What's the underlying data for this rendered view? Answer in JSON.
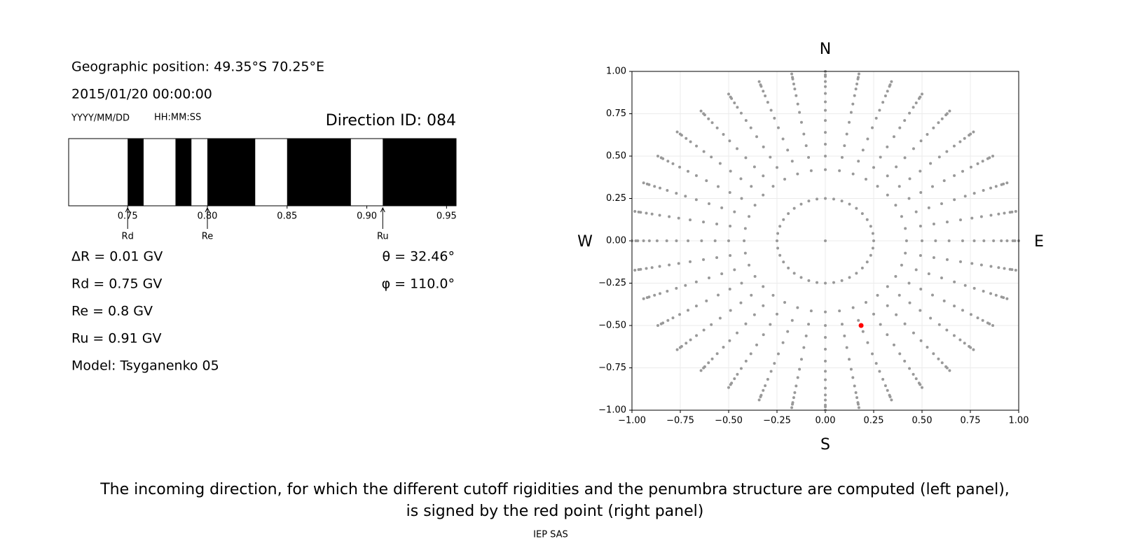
{
  "texts": {
    "geo": "Geographic position: 49.35°S 70.25°E",
    "datetime": "2015/01/20 00:00:00",
    "date_format": "YYYY/MM/DD",
    "time_format": "HH:MM:SS",
    "direction": "Direction ID: 084",
    "delta_r": "ΔR = 0.01 GV",
    "rd": "Rd = 0.75 GV",
    "re": "Re = 0.8 GV",
    "ru": "Ru = 0.91 GV",
    "model": "Model: Tsyganenko 05",
    "theta": "θ = 32.46°",
    "phi": "φ = 110.0°",
    "caption": [
      "The incoming direction, for which the different cutoff rigidities and the penumbra structure are computed (left panel),",
      "is signed by the red point (right panel)"
    ],
    "credit": "IEP SAS"
  },
  "chart_data": [
    {
      "type": "penumbra",
      "color": "#000000",
      "xlim": [
        0.713,
        0.956
      ],
      "xticks": [
        0.75,
        {
          "value": 0.8,
          "label": "0.80"
        },
        0.85,
        {
          "value": 0.9,
          "label": "0.90"
        },
        0.95
      ],
      "forbidden": [
        [
          0.75,
          0.76
        ],
        [
          0.78,
          0.79
        ],
        [
          0.8,
          0.83
        ],
        [
          0.85,
          0.89
        ],
        [
          0.91,
          0.956
        ]
      ],
      "markers": [
        {
          "name": "Rd",
          "value": 0.75
        },
        {
          "name": "Re",
          "value": 0.8
        },
        {
          "name": "Ru",
          "value": 0.91
        }
      ]
    },
    {
      "type": "scatter",
      "grid": true,
      "xlim": [
        -1,
        1
      ],
      "ylim": [
        -1,
        1
      ],
      "xticks": [
        {
          "value": -1,
          "label": "−1.00"
        },
        {
          "value": -0.75,
          "label": "−0.75"
        },
        {
          "value": -0.5,
          "label": "−0.50"
        },
        {
          "value": -0.25,
          "label": "−0.25"
        },
        {
          "value": 0,
          "label": "0.00"
        },
        0.25,
        {
          "value": 0.5,
          "label": "0.50"
        },
        0.75,
        {
          "value": 1,
          "label": "1.00"
        }
      ],
      "yticks": [
        {
          "value": -1,
          "label": "−1.00"
        },
        {
          "value": -0.75,
          "label": "−0.75"
        },
        {
          "value": -0.5,
          "label": "−0.50"
        },
        {
          "value": -0.25,
          "label": "−0.25"
        },
        {
          "value": 0,
          "label": "0.00"
        },
        0.25,
        {
          "value": 0.5,
          "label": "0.50"
        },
        0.75,
        {
          "value": 1,
          "label": "1.00"
        }
      ],
      "compass": {
        "north": "N",
        "east": "E",
        "south": "S",
        "west": "W"
      },
      "directions": {
        "color": "#999999",
        "center": [
          0,
          0
        ],
        "azimuths": [
          0,
          10,
          20,
          30,
          40,
          50,
          60,
          70,
          80,
          90,
          100,
          110,
          120,
          130,
          140,
          150,
          160,
          170,
          180,
          190,
          200,
          210,
          220,
          230,
          240,
          250,
          260,
          270,
          280,
          290,
          300,
          310,
          320,
          330,
          340,
          350
        ],
        "radii": [
          0.25,
          0.42,
          0.5,
          0.57,
          0.64,
          0.71,
          0.77,
          0.82,
          0.87,
          0.91,
          0.94,
          0.97,
          0.98,
          1.0
        ]
      },
      "selected": {
        "color": "#ff0000",
        "x": 0.185,
        "y": -0.5
      }
    }
  ]
}
